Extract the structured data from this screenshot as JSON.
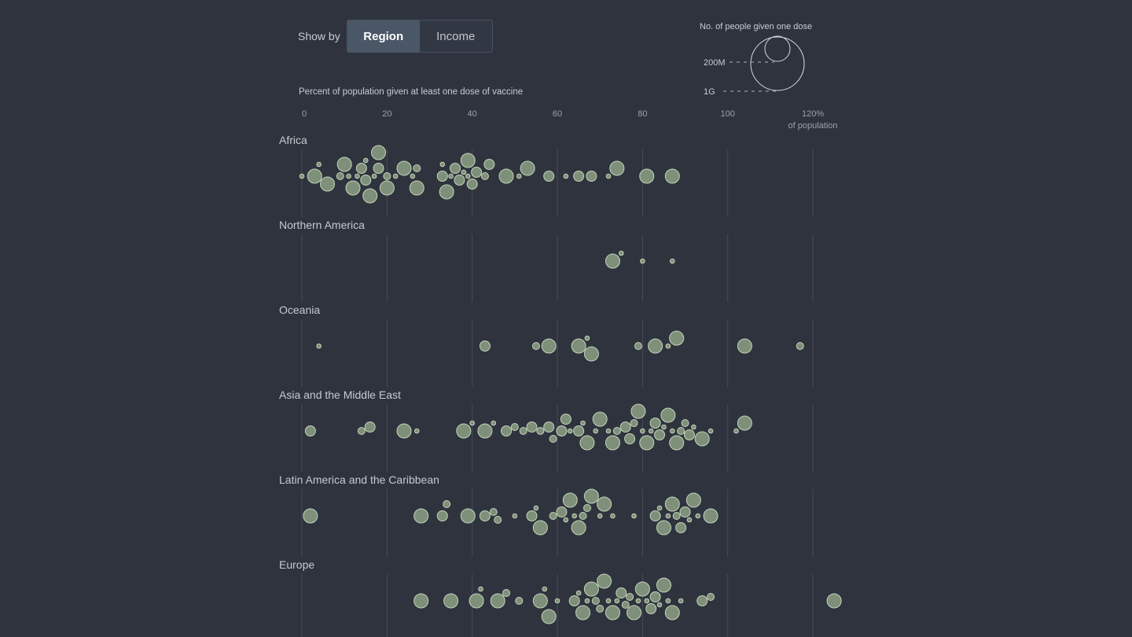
{
  "controls": {
    "show_by_label": "Show by",
    "options": [
      {
        "label": "Region",
        "active": true
      },
      {
        "label": "Income",
        "active": false
      }
    ]
  },
  "legend": {
    "title": "No. of people given one dose",
    "items": [
      {
        "label": "200M",
        "value": 200000000
      },
      {
        "label": "1G",
        "value": 1000000000
      }
    ]
  },
  "colors": {
    "background": "#2f333e",
    "bubble_fill": "#7e907a",
    "bubble_stroke": "#c3d3b8",
    "gridline": "#474c58"
  },
  "chart_data": {
    "type": "scatter",
    "subtype": "beeswarm",
    "title": "Percent of population given at least one dose of vaccine",
    "xlabel": "of population",
    "xlim": [
      0,
      120
    ],
    "xticks": [
      "0",
      "20",
      "40",
      "60",
      "80",
      "100",
      "120%"
    ],
    "size_encoding": "No. of people given one dose",
    "series": [
      {
        "name": "Africa",
        "values": [
          0,
          3,
          4,
          6,
          9,
          10,
          11,
          12,
          13,
          14,
          15,
          15,
          16,
          17,
          18,
          18,
          20,
          20,
          22,
          24,
          26,
          27,
          27,
          33,
          33,
          34,
          35,
          36,
          37,
          38,
          39,
          39,
          40,
          41,
          43,
          44,
          48,
          51,
          53,
          58,
          62,
          65,
          68,
          72,
          74,
          81,
          87
        ]
      },
      {
        "name": "Northern America",
        "values": [
          73,
          75,
          80,
          87
        ]
      },
      {
        "name": "Oceania",
        "values": [
          4,
          43,
          55,
          58,
          65,
          67,
          68,
          79,
          83,
          86,
          88,
          104,
          117
        ]
      },
      {
        "name": "Asia and the Middle East",
        "values": [
          2,
          14,
          16,
          24,
          27,
          38,
          40,
          43,
          45,
          48,
          50,
          52,
          54,
          56,
          58,
          59,
          61,
          62,
          63,
          65,
          66,
          67,
          69,
          70,
          72,
          73,
          74,
          76,
          77,
          78,
          79,
          80,
          81,
          82,
          83,
          84,
          85,
          86,
          87,
          88,
          89,
          90,
          91,
          92,
          94,
          96,
          102,
          104
        ]
      },
      {
        "name": "Latin America and the Caribbean",
        "values": [
          2,
          28,
          33,
          34,
          39,
          43,
          45,
          46,
          50,
          54,
          55,
          56,
          59,
          61,
          62,
          63,
          64,
          65,
          66,
          67,
          68,
          70,
          71,
          73,
          78,
          83,
          84,
          85,
          86,
          87,
          88,
          89,
          90,
          91,
          92,
          93,
          96
        ]
      },
      {
        "name": "Europe",
        "values": [
          28,
          35,
          41,
          42,
          46,
          48,
          51,
          56,
          57,
          58,
          60,
          64,
          65,
          66,
          67,
          68,
          69,
          70,
          71,
          72,
          73,
          74,
          75,
          76,
          77,
          78,
          79,
          80,
          81,
          82,
          83,
          84,
          85,
          86,
          87,
          89,
          94,
          96,
          125
        ]
      }
    ]
  }
}
